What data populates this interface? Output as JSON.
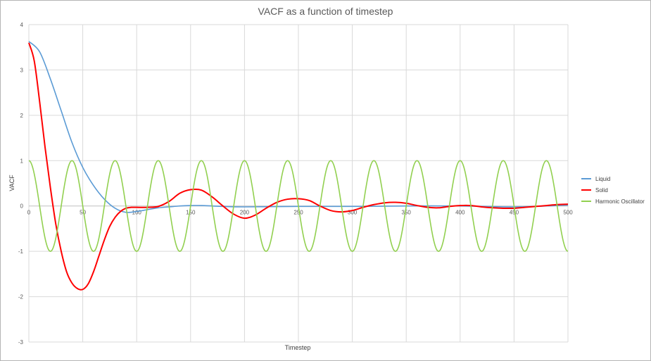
{
  "chart_data": {
    "type": "line",
    "title": "VACF as a function of timestep",
    "xlabel": "Timestep",
    "ylabel": "VACF",
    "xlim": [
      0,
      500
    ],
    "ylim": [
      -3,
      4
    ],
    "x_ticks": [
      "0",
      "50",
      "100",
      "150",
      "200",
      "250",
      "300",
      "350",
      "400",
      "450",
      "500"
    ],
    "y_ticks": [
      "4",
      "3",
      "2",
      "1",
      "0",
      "-1",
      "-2",
      "-3"
    ],
    "grid": true,
    "legend_position": "right",
    "series": [
      {
        "name": "Liquid",
        "color": "#5b9bd5",
        "x": [
          0,
          10,
          20,
          30,
          40,
          50,
          60,
          70,
          80,
          90,
          100,
          110,
          120,
          130,
          140,
          150,
          160,
          170,
          180,
          200,
          250,
          300,
          350,
          400,
          450,
          500
        ],
        "y": [
          3.63,
          3.4,
          2.8,
          2.1,
          1.4,
          0.85,
          0.45,
          0.15,
          -0.05,
          -0.14,
          -0.12,
          -0.08,
          -0.04,
          -0.02,
          0.0,
          0.01,
          0.01,
          0.0,
          -0.01,
          -0.02,
          -0.01,
          -0.01,
          0.0,
          0.0,
          -0.02,
          0.02
        ]
      },
      {
        "name": "Solid",
        "color": "#ff0000",
        "x": [
          0,
          5,
          10,
          15,
          20,
          25,
          30,
          35,
          40,
          45,
          50,
          55,
          60,
          65,
          70,
          75,
          80,
          85,
          90,
          95,
          100,
          110,
          120,
          130,
          140,
          150,
          160,
          170,
          180,
          190,
          200,
          210,
          220,
          230,
          240,
          250,
          260,
          270,
          280,
          290,
          300,
          310,
          320,
          330,
          340,
          350,
          360,
          370,
          380,
          390,
          400,
          410,
          420,
          430,
          440,
          450,
          460,
          470,
          480,
          490,
          500
        ],
        "y": [
          3.6,
          3.2,
          2.3,
          1.3,
          0.4,
          -0.4,
          -1.0,
          -1.45,
          -1.7,
          -1.82,
          -1.84,
          -1.72,
          -1.45,
          -1.1,
          -0.75,
          -0.45,
          -0.25,
          -0.12,
          -0.05,
          -0.03,
          -0.03,
          -0.03,
          -0.01,
          0.1,
          0.28,
          0.36,
          0.35,
          0.2,
          0.0,
          -0.18,
          -0.27,
          -0.2,
          -0.05,
          0.08,
          0.15,
          0.16,
          0.12,
          0.0,
          -0.1,
          -0.13,
          -0.1,
          -0.03,
          0.03,
          0.07,
          0.08,
          0.06,
          0.01,
          -0.03,
          -0.04,
          -0.01,
          0.01,
          0.01,
          -0.02,
          -0.04,
          -0.05,
          -0.05,
          -0.03,
          -0.01,
          0.01,
          0.03,
          0.04
        ]
      },
      {
        "name": "Harmonic Oscillator",
        "color": "#92d050",
        "period": 40,
        "amplitude": 1
      }
    ]
  }
}
